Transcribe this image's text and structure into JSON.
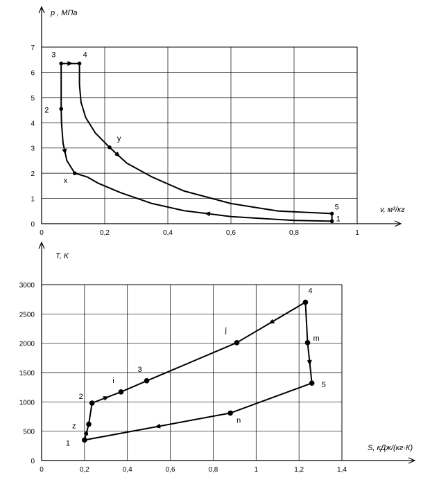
{
  "chart_data": [
    {
      "type": "line",
      "title": "",
      "ylabel": "p , МПа",
      "xlabel": "v, м³/кг",
      "xlim": [
        0,
        1
      ],
      "ylim": [
        0,
        7
      ],
      "x_ticks": [
        "0",
        "0,2",
        "0,4",
        "0,6",
        "0,8",
        "1"
      ],
      "y_ticks": [
        "0",
        "1",
        "2",
        "3",
        "4",
        "5",
        "6",
        "7"
      ],
      "grid": true,
      "series": [
        {
          "values": [
            [
              0.92,
              0.1
            ],
            [
              0.8,
              0.13
            ],
            [
              0.6,
              0.28
            ],
            [
              0.45,
              0.52
            ],
            [
              0.35,
              0.8
            ],
            [
              0.25,
              1.23
            ],
            [
              0.18,
              1.6
            ],
            [
              0.145,
              1.85
            ],
            [
              0.105,
              2.0
            ],
            [
              0.08,
              2.5
            ],
            [
              0.068,
              3.2
            ],
            [
              0.063,
              4.0
            ],
            [
              0.062,
              4.55
            ],
            [
              0.062,
              5.5
            ],
            [
              0.062,
              6.35
            ],
            [
              0.12,
              6.35
            ],
            [
              0.12,
              5.5
            ],
            [
              0.125,
              4.8
            ],
            [
              0.14,
              4.2
            ],
            [
              0.17,
              3.6
            ],
            [
              0.215,
              3.03
            ],
            [
              0.27,
              2.4
            ],
            [
              0.35,
              1.85
            ],
            [
              0.45,
              1.3
            ],
            [
              0.6,
              0.8
            ],
            [
              0.75,
              0.5
            ],
            [
              0.92,
              0.4
            ],
            [
              0.92,
              0.1
            ]
          ]
        }
      ],
      "points": [
        {
          "label": "1",
          "x": 0.92,
          "y": 0.1
        },
        {
          "label": "2",
          "x": 0.062,
          "y": 4.55
        },
        {
          "label": "3",
          "x": 0.062,
          "y": 6.35
        },
        {
          "label": "4",
          "x": 0.12,
          "y": 6.35
        },
        {
          "label": "5",
          "x": 0.92,
          "y": 0.4
        },
        {
          "label": "x",
          "x": 0.105,
          "y": 2.0
        },
        {
          "label": "y",
          "x": 0.215,
          "y": 3.03
        }
      ]
    },
    {
      "type": "line",
      "title": "",
      "ylabel": "T, K",
      "xlabel": "S, кДж/(кг·К)",
      "xlim": [
        0,
        1.4
      ],
      "ylim": [
        0,
        3000
      ],
      "x_ticks": [
        "0",
        "0,2",
        "0,4",
        "0,6",
        "0,8",
        "1",
        "1,2",
        "1,4"
      ],
      "y_ticks": [
        "0",
        "500",
        "1000",
        "1500",
        "2000",
        "2500",
        "3000"
      ],
      "grid": true,
      "series": [
        {
          "values": [
            [
              0.2,
              350
            ],
            [
              0.22,
              620
            ],
            [
              0.235,
              980
            ],
            [
              0.37,
              1170
            ],
            [
              0.49,
              1360
            ],
            [
              0.91,
              2010
            ],
            [
              1.23,
              2700
            ],
            [
              1.24,
              2010
            ],
            [
              1.26,
              1320
            ],
            [
              0.88,
              810
            ],
            [
              0.2,
              350
            ]
          ]
        }
      ],
      "points": [
        {
          "label": "1",
          "x": 0.2,
          "y": 350
        },
        {
          "label": "z",
          "x": 0.22,
          "y": 620
        },
        {
          "label": "2",
          "x": 0.235,
          "y": 980
        },
        {
          "label": "i",
          "x": 0.37,
          "y": 1170
        },
        {
          "label": "3",
          "x": 0.49,
          "y": 1360
        },
        {
          "label": "j",
          "x": 0.91,
          "y": 2010
        },
        {
          "label": "4",
          "x": 1.23,
          "y": 2700
        },
        {
          "label": "m",
          "x": 1.24,
          "y": 2010
        },
        {
          "label": "5",
          "x": 1.26,
          "y": 1320
        },
        {
          "label": "n",
          "x": 0.88,
          "y": 810
        }
      ]
    }
  ]
}
